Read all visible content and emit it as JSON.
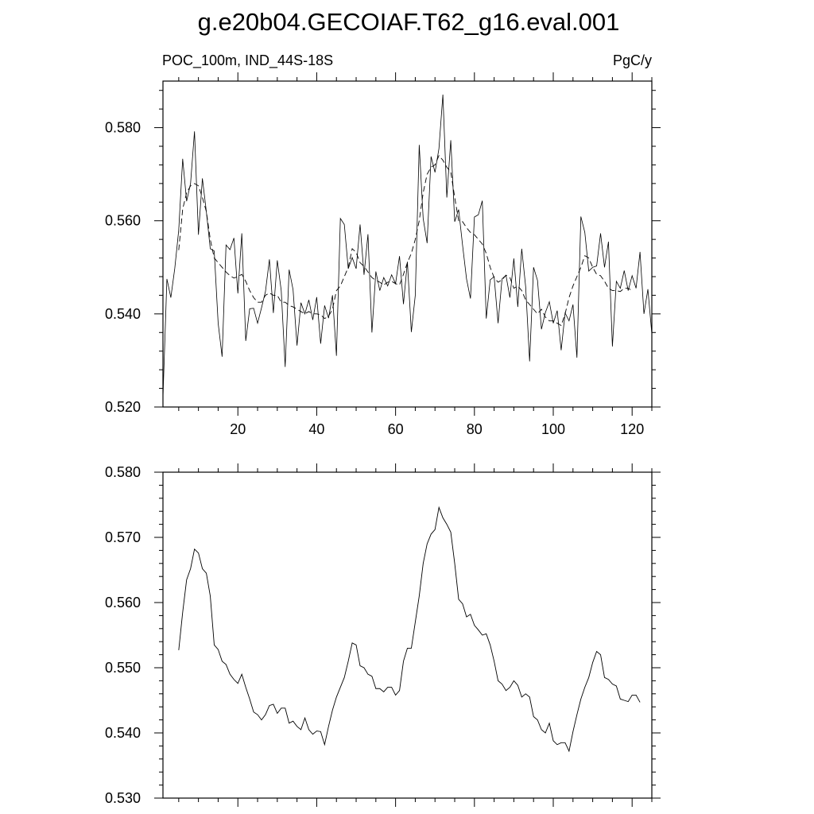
{
  "title": "g.e20b04.GECOIAF.T62_g16.eval.001",
  "subtitle_left": "POC_100m, IND_44S-18S",
  "subtitle_right": "PgC/y",
  "chart_data": [
    {
      "type": "line",
      "xlim": [
        1,
        125
      ],
      "ylim": [
        0.52,
        0.59
      ],
      "x_ticks": [
        20,
        40,
        60,
        80,
        100,
        120
      ],
      "x_tick_labels": [
        "20",
        "40",
        "60",
        "80",
        "100",
        "120"
      ],
      "y_ticks": [
        0.52,
        0.54,
        0.56,
        0.58
      ],
      "y_tick_labels": [
        "0.520",
        "0.540",
        "0.560",
        "0.580"
      ],
      "grid": false,
      "series": [
        {
          "style": "solid",
          "values": [
            0.5221,
            0.5475,
            0.5435,
            0.5498,
            0.558,
            0.5733,
            0.5642,
            0.568,
            0.5792,
            0.557,
            0.5691,
            0.562,
            0.554,
            0.5535,
            0.538,
            0.5308,
            0.5548,
            0.5538,
            0.5563,
            0.5444,
            0.5573,
            0.5342,
            0.5411,
            0.5412,
            0.538,
            0.5413,
            0.5448,
            0.5517,
            0.5402,
            0.5515,
            0.545,
            0.5286,
            0.5495,
            0.5452,
            0.5332,
            0.5424,
            0.54,
            0.543,
            0.5387,
            0.5436,
            0.5336,
            0.5418,
            0.5391,
            0.544,
            0.531,
            0.5605,
            0.5592,
            0.5497,
            0.5521,
            0.5497,
            0.5592,
            0.5484,
            0.5571,
            0.536,
            0.5491,
            0.545,
            0.5478,
            0.546,
            0.5484,
            0.5465,
            0.5524,
            0.5421,
            0.5512,
            0.5361,
            0.544,
            0.5763,
            0.5605,
            0.5552,
            0.5738,
            0.5704,
            0.5755,
            0.5871,
            0.565,
            0.5773,
            0.5598,
            0.5624,
            0.5547,
            0.5475,
            0.5433,
            0.5608,
            0.5613,
            0.5643,
            0.539,
            0.5473,
            0.548,
            0.538,
            0.5475,
            0.5483,
            0.5435,
            0.5519,
            0.5415,
            0.554,
            0.5458,
            0.5298,
            0.55,
            0.5472,
            0.5367,
            0.5403,
            0.5426,
            0.538,
            0.5407,
            0.5322,
            0.5402,
            0.5385,
            0.542,
            0.5306,
            0.5609,
            0.5575,
            0.5492,
            0.55,
            0.5503,
            0.5573,
            0.55,
            0.5555,
            0.533,
            0.547,
            0.5455,
            0.5493,
            0.545,
            0.5482,
            0.5455,
            0.5533,
            0.54,
            0.5453,
            0.5357
          ]
        },
        {
          "style": "dashed",
          "values": [
            null,
            null,
            null,
            null,
            0.5537,
            0.5625,
            0.566,
            0.5675,
            0.568,
            0.5675,
            0.565,
            0.562,
            0.556,
            0.552,
            0.551,
            0.55,
            0.549,
            0.5482,
            0.5477,
            0.548,
            0.5485,
            0.547,
            0.545,
            0.5435,
            0.5425,
            0.5425,
            0.544,
            0.5445,
            0.544,
            0.544,
            0.5425,
            0.5425,
            0.5418,
            0.5415,
            0.541,
            0.5405,
            0.54,
            0.5405,
            0.54,
            0.54,
            0.5398,
            0.539,
            0.5395,
            0.541,
            0.545,
            0.546,
            0.548,
            0.55,
            0.554,
            0.5532,
            0.551,
            0.5502,
            0.549,
            0.5478,
            0.5472,
            0.5468,
            0.5462,
            0.5468,
            0.547,
            0.5465,
            0.5462,
            0.5485,
            0.551,
            0.553,
            0.556,
            0.56,
            0.566,
            0.57,
            0.5715,
            0.572,
            0.574,
            0.573,
            0.5715,
            0.5705,
            0.565,
            0.56,
            0.5598,
            0.5585,
            0.5575,
            0.557,
            0.556,
            0.555,
            0.553,
            0.55,
            0.5478,
            0.5468,
            0.5473,
            0.5483,
            0.5478,
            0.5455,
            0.546,
            0.545,
            0.543,
            0.542,
            0.541,
            0.54,
            0.541,
            0.5393,
            0.5385,
            0.5385,
            0.538,
            0.5375,
            0.54,
            0.5435,
            0.546,
            0.548,
            0.55,
            0.5525,
            0.552,
            0.55,
            0.5485,
            0.5482,
            0.547,
            0.5455,
            0.545,
            0.545,
            0.5448,
            0.5455,
            0.5455,
            0.545,
            null,
            null,
            null,
            null,
            null
          ]
        }
      ]
    },
    {
      "type": "line",
      "xlim": [
        1,
        125
      ],
      "ylim": [
        0.53,
        0.58
      ],
      "x_ticks": [
        20,
        40,
        60,
        80,
        100,
        120
      ],
      "y_ticks": [
        0.53,
        0.54,
        0.55,
        0.56,
        0.57,
        0.58
      ],
      "y_tick_labels": [
        "0.530",
        "0.540",
        "0.550",
        "0.560",
        "0.570",
        "0.580"
      ],
      "grid": false,
      "series": [
        {
          "style": "solid",
          "values": [
            null,
            null,
            null,
            null,
            0.5527,
            0.5585,
            0.5635,
            0.5652,
            0.5682,
            0.5676,
            0.5652,
            0.5645,
            0.561,
            0.5535,
            0.5528,
            0.551,
            0.5505,
            0.549,
            0.5482,
            0.5476,
            0.549,
            0.547,
            0.5452,
            0.5432,
            0.5428,
            0.542,
            0.5428,
            0.5442,
            0.5444,
            0.543,
            0.5438,
            0.5438,
            0.5415,
            0.5418,
            0.541,
            0.5405,
            0.5423,
            0.5405,
            0.5398,
            0.5403,
            0.5402,
            0.5382,
            0.541,
            0.5435,
            0.5455,
            0.547,
            0.5485,
            0.551,
            0.5538,
            0.5535,
            0.5503,
            0.55,
            0.549,
            0.5487,
            0.5468,
            0.5468,
            0.5463,
            0.547,
            0.547,
            0.5458,
            0.5465,
            0.551,
            0.553,
            0.553,
            0.557,
            0.561,
            0.566,
            0.569,
            0.5705,
            0.5712,
            0.5746,
            0.573,
            0.572,
            0.5708,
            0.566,
            0.5605,
            0.5598,
            0.5578,
            0.5582,
            0.5565,
            0.5558,
            0.555,
            0.5552,
            0.5535,
            0.551,
            0.548,
            0.5475,
            0.5465,
            0.547,
            0.548,
            0.5473,
            0.5455,
            0.546,
            0.5455,
            0.5425,
            0.542,
            0.5405,
            0.54,
            0.5415,
            0.5388,
            0.5382,
            0.5385,
            0.5385,
            0.5372,
            0.5402,
            0.5428,
            0.5452,
            0.547,
            0.5485,
            0.5508,
            0.5525,
            0.552,
            0.5485,
            0.5482,
            0.5475,
            0.5472,
            0.5452,
            0.545,
            0.5448,
            0.5458,
            0.5458,
            0.5447,
            null,
            null,
            null,
            null,
            null
          ]
        }
      ]
    }
  ]
}
